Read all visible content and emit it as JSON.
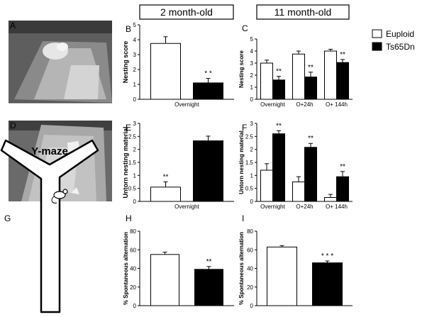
{
  "headers": {
    "young": "2 month-old",
    "old": "11 month-old"
  },
  "legend": [
    {
      "label": "Euploid",
      "color": "#ffffff"
    },
    {
      "label": "Ts65Dn",
      "color": "#000000"
    }
  ],
  "panel_letters": {
    "A": "A",
    "B": "B",
    "C": "C",
    "D": "D",
    "E": "E",
    "F": "F",
    "G": "G",
    "H": "H",
    "I": "I"
  },
  "ymaze_title": "Y-maze",
  "colors": {
    "euploid": "#ffffff",
    "ts65dn": "#000000",
    "axis": "#000000",
    "photo_bg": "#6e6e6e"
  },
  "chart_data": [
    {
      "id": "B",
      "type": "bar",
      "xlabel": "",
      "ylabel": "Nesting score",
      "categories": [
        "Overnight"
      ],
      "ylim": [
        0,
        5
      ],
      "yticks": [
        0,
        1,
        2,
        3,
        4,
        5
      ],
      "series": [
        {
          "name": "Euploid",
          "values": [
            3.75
          ],
          "errors": [
            0.45
          ]
        },
        {
          "name": "Ts65Dn",
          "values": [
            1.1
          ],
          "errors": [
            0.3
          ]
        }
      ],
      "annotations": [
        {
          "text": "* *",
          "category": 0,
          "series": 1
        }
      ]
    },
    {
      "id": "C",
      "type": "bar",
      "xlabel": "",
      "ylabel": "Nesting score",
      "categories": [
        "Overnight",
        "O+24h",
        "O+ 144h"
      ],
      "ylim": [
        0,
        5
      ],
      "yticks": [
        0,
        1,
        2,
        3,
        4,
        5
      ],
      "series": [
        {
          "name": "Euploid",
          "values": [
            3.0,
            3.75,
            4.0
          ],
          "errors": [
            0.25,
            0.25,
            0.15
          ]
        },
        {
          "name": "Ts65Dn",
          "values": [
            1.6,
            1.85,
            3.05
          ],
          "errors": [
            0.3,
            0.4,
            0.25
          ]
        }
      ],
      "annotations": [
        {
          "text": "**",
          "category": 0,
          "series": 1
        },
        {
          "text": "**",
          "category": 1,
          "series": 1
        },
        {
          "text": "**",
          "category": 2,
          "series": 1
        }
      ]
    },
    {
      "id": "E",
      "type": "bar",
      "xlabel": "",
      "ylabel": "Untorn nesting material",
      "categories": [
        "Overnight"
      ],
      "ylim": [
        0,
        3
      ],
      "yticks": [
        0,
        0.5,
        1,
        1.5,
        2,
        2.5,
        3
      ],
      "series": [
        {
          "name": "Euploid",
          "values": [
            0.55
          ],
          "errors": [
            0.2
          ]
        },
        {
          "name": "Ts65Dn",
          "values": [
            2.33
          ],
          "errors": [
            0.18
          ]
        }
      ],
      "annotations": [
        {
          "text": "**",
          "category": 0,
          "series": 0
        }
      ]
    },
    {
      "id": "F",
      "type": "bar",
      "xlabel": "",
      "ylabel": "Untorn nesting material",
      "categories": [
        "Overnight",
        "O+24h",
        "O+ 144h"
      ],
      "ylim": [
        0,
        3
      ],
      "yticks": [
        0,
        0.5,
        1,
        1.5,
        2,
        2.5,
        3
      ],
      "series": [
        {
          "name": "Euploid",
          "values": [
            1.2,
            0.75,
            0.15
          ],
          "errors": [
            0.25,
            0.2,
            0.12
          ]
        },
        {
          "name": "Ts65Dn",
          "values": [
            2.6,
            2.08,
            0.95
          ],
          "errors": [
            0.12,
            0.15,
            0.2
          ]
        }
      ],
      "annotations": [
        {
          "text": "**",
          "category": 0,
          "series": 1
        },
        {
          "text": "**",
          "category": 1,
          "series": 1
        },
        {
          "text": "**",
          "category": 2,
          "series": 1
        }
      ]
    },
    {
      "id": "H",
      "type": "bar",
      "xlabel": "",
      "ylabel": "% Spontaneous alternation",
      "categories": [
        ""
      ],
      "ylim": [
        0,
        80
      ],
      "yticks": [
        0,
        20,
        40,
        60,
        80
      ],
      "series": [
        {
          "name": "Euploid",
          "values": [
            55
          ],
          "errors": [
            2.5
          ]
        },
        {
          "name": "Ts65Dn",
          "values": [
            39
          ],
          "errors": [
            3
          ]
        }
      ],
      "annotations": [
        {
          "text": "**",
          "category": 0,
          "series": 1
        }
      ]
    },
    {
      "id": "I",
      "type": "bar",
      "xlabel": "",
      "ylabel": "% Spontaneous alternation",
      "categories": [
        ""
      ],
      "ylim": [
        0,
        80
      ],
      "yticks": [
        0,
        20,
        40,
        60,
        80
      ],
      "series": [
        {
          "name": "Euploid",
          "values": [
            63
          ],
          "errors": [
            1.5
          ]
        },
        {
          "name": "Ts65Dn",
          "values": [
            46
          ],
          "errors": [
            2
          ]
        }
      ],
      "annotations": [
        {
          "text": "* * *",
          "category": 0,
          "series": 1
        }
      ]
    }
  ]
}
